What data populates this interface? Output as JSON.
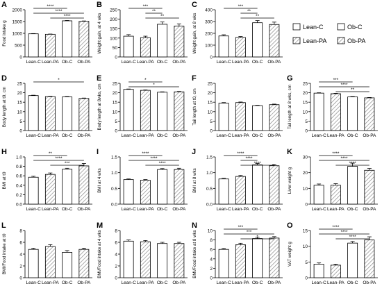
{
  "figure": {
    "categories": [
      "Lean-C",
      "Lean-PA",
      "Ob-C",
      "Ob-PA"
    ],
    "legend_title": "",
    "colors": {
      "bar_fill": "#ffffff",
      "bar_stroke": "#000000",
      "hatch": "#8a8a8a"
    }
  },
  "chart_data": [
    {
      "type": "bar",
      "panel": "A",
      "ylabel": "Food intake g",
      "ylim": [
        0,
        2000
      ],
      "yticks": [
        0,
        500,
        1000,
        1500,
        2000
      ],
      "categories": [
        "Lean-C",
        "Lean-PA",
        "Ob-C",
        "Ob-PA"
      ],
      "values": [
        980,
        960,
        1530,
        1510
      ],
      "errors": [
        10,
        10,
        15,
        15
      ],
      "sig": [
        {
          "from": 0,
          "to": 2,
          "label": "****"
        },
        {
          "from": 0,
          "to": 3,
          "label": "****"
        },
        {
          "from": 1,
          "to": 3,
          "label": "****"
        }
      ]
    },
    {
      "type": "bar",
      "panel": "B",
      "ylabel": "Weight gain, at 4 wks",
      "ylim": [
        0,
        250
      ],
      "yticks": [
        0,
        50,
        100,
        150,
        200,
        250
      ],
      "categories": [
        "Lean-C",
        "Lean-PA",
        "Ob-C",
        "Ob-PA"
      ],
      "values": [
        110,
        102,
        173,
        163
      ],
      "errors": [
        8,
        8,
        12,
        12
      ],
      "sig": [
        {
          "from": 0,
          "to": 2,
          "label": "***"
        },
        {
          "from": 1,
          "to": 2,
          "label": "**"
        },
        {
          "from": 1,
          "to": 3,
          "label": "**"
        }
      ]
    },
    {
      "type": "bar",
      "panel": "C",
      "ylabel": "Weight gain, at 8 wks",
      "ylim": [
        0,
        400
      ],
      "yticks": [
        0,
        100,
        200,
        300,
        400
      ],
      "categories": [
        "Lean-C",
        "Lean-PA",
        "Ob-C",
        "Ob-PA"
      ],
      "values": [
        178,
        165,
        290,
        275
      ],
      "errors": [
        10,
        8,
        18,
        20
      ],
      "sig": [
        {
          "from": 0,
          "to": 2,
          "label": "***"
        },
        {
          "from": 1,
          "to": 2,
          "label": "**"
        },
        {
          "from": 1,
          "to": 3,
          "label": "**"
        }
      ]
    },
    {
      "type": "bar",
      "panel": "D",
      "ylabel": "Body length at t0, cm",
      "ylim": [
        0,
        25
      ],
      "yticks": [
        0,
        5,
        10,
        15,
        20,
        25
      ],
      "categories": [
        "Lean-C",
        "Lean-PA",
        "Ob-C",
        "Ob-PA"
      ],
      "values": [
        18.5,
        18.0,
        17.8,
        17.0
      ],
      "errors": [
        0.2,
        0.2,
        0.2,
        0.2
      ],
      "sig": [
        {
          "from": 0,
          "to": 3,
          "label": "*"
        }
      ]
    },
    {
      "type": "bar",
      "panel": "E",
      "ylabel": "Body length at 8wks, cm",
      "ylim": [
        0,
        25
      ],
      "yticks": [
        0,
        5,
        10,
        15,
        20,
        25
      ],
      "categories": [
        "Lean-C",
        "Lean-PA",
        "Ob-C",
        "Ob-PA"
      ],
      "values": [
        21.8,
        21.3,
        20.3,
        20.5
      ],
      "errors": [
        0.2,
        0.2,
        0.2,
        0.2
      ],
      "sig": [
        {
          "from": 0,
          "to": 2,
          "label": "*"
        },
        {
          "from": 0,
          "to": 3,
          "label": "*"
        }
      ]
    },
    {
      "type": "bar",
      "panel": "F",
      "ylabel": "Tail length at t0, cm",
      "ylim": [
        0,
        25
      ],
      "yticks": [
        0,
        5,
        10,
        15,
        20,
        25
      ],
      "categories": [
        "Lean-C",
        "Lean-PA",
        "Ob-C",
        "Ob-PA"
      ],
      "values": [
        14.5,
        14.8,
        13.2,
        13.7
      ],
      "errors": [
        0.3,
        0.3,
        0.2,
        0.3
      ],
      "sig": []
    },
    {
      "type": "bar",
      "panel": "G",
      "ylabel": "Tail length at 8 wks, cm",
      "ylim": [
        0,
        25
      ],
      "yticks": [
        0,
        5,
        10,
        15,
        20,
        25
      ],
      "categories": [
        "Lean-C",
        "Lean-PA",
        "Ob-C",
        "Ob-PA"
      ],
      "values": [
        19.8,
        19.5,
        17.8,
        17.3
      ],
      "errors": [
        0.2,
        0.2,
        0.2,
        0.2
      ],
      "sig": [
        {
          "from": 0,
          "to": 2,
          "label": "***"
        },
        {
          "from": 0,
          "to": 3,
          "label": "****"
        },
        {
          "from": 1,
          "to": 3,
          "label": "**"
        }
      ]
    },
    {
      "type": "bar",
      "panel": "H",
      "ylabel": "BMI at t0",
      "ylim": [
        0,
        1.0
      ],
      "yticks": [
        0.0,
        0.2,
        0.4,
        0.6,
        0.8,
        1.0
      ],
      "categories": [
        "Lean-C",
        "Lean-PA",
        "Ob-C",
        "Ob-PA"
      ],
      "values": [
        0.57,
        0.63,
        0.74,
        0.81
      ],
      "errors": [
        0.02,
        0.03,
        0.02,
        0.05
      ],
      "sig": [
        {
          "from": 0,
          "to": 2,
          "label": "**"
        },
        {
          "from": 0,
          "to": 3,
          "label": "****"
        },
        {
          "from": 1,
          "to": 3,
          "label": "***"
        }
      ]
    },
    {
      "type": "bar",
      "panel": "I",
      "ylabel": "BMI at 4 wks",
      "ylim": [
        0,
        1.5
      ],
      "yticks": [
        0.0,
        0.5,
        1.0,
        1.5
      ],
      "categories": [
        "Lean-C",
        "Lean-PA",
        "Ob-C",
        "Ob-PA"
      ],
      "values": [
        0.78,
        0.76,
        1.1,
        1.1
      ],
      "errors": [
        0.02,
        0.02,
        0.03,
        0.04
      ],
      "sig": [
        {
          "from": 0,
          "to": 2,
          "label": "****"
        },
        {
          "from": 0,
          "to": 3,
          "label": "****"
        },
        {
          "from": 1,
          "to": 3,
          "label": "****"
        }
      ]
    },
    {
      "type": "bar",
      "panel": "J",
      "ylabel": "BMI at 8 wks",
      "ylim": [
        0,
        1.5
      ],
      "yticks": [
        0.0,
        0.5,
        1.0,
        1.5
      ],
      "categories": [
        "Lean-C",
        "Lean-PA",
        "Ob-C",
        "Ob-PA"
      ],
      "values": [
        0.8,
        0.88,
        1.25,
        1.22
      ],
      "errors": [
        0.02,
        0.03,
        0.04,
        0.04
      ],
      "sig": [
        {
          "from": 0,
          "to": 2,
          "label": "****"
        },
        {
          "from": 1,
          "to": 2,
          "label": "****"
        },
        {
          "from": 1,
          "to": 3,
          "label": "****"
        }
      ]
    },
    {
      "type": "bar",
      "panel": "K",
      "ylabel": "Liver weight g",
      "ylim": [
        0,
        30
      ],
      "yticks": [
        0,
        10,
        20,
        30
      ],
      "categories": [
        "Lean-C",
        "Lean-PA",
        "Ob-C",
        "Ob-PA"
      ],
      "values": [
        12,
        12,
        24,
        21.5
      ],
      "errors": [
        0.8,
        1.0,
        2.0,
        1.2
      ],
      "sig": [
        {
          "from": 0,
          "to": 2,
          "label": "****"
        },
        {
          "from": 0,
          "to": 3,
          "label": "****"
        },
        {
          "from": 1,
          "to": 3,
          "label": "****"
        }
      ]
    },
    {
      "type": "bar",
      "panel": "L",
      "ylabel": "BMI/Food intake at t0",
      "ylim": [
        0,
        8
      ],
      "yticks": [
        0,
        2,
        4,
        6,
        8
      ],
      "categories": [
        "Lean-C",
        "Lean-PA",
        "Ob-C",
        "Ob-PA"
      ],
      "values": [
        4.8,
        5.3,
        4.3,
        4.8
      ],
      "errors": [
        0.2,
        0.3,
        0.3,
        0.2
      ],
      "sig": []
    },
    {
      "type": "bar",
      "panel": "M",
      "ylabel": "BMI/Food intake at 4 wks",
      "ylim": [
        0,
        8
      ],
      "yticks": [
        0,
        2,
        4,
        6,
        8
      ],
      "categories": [
        "Lean-C",
        "Lean-PA",
        "Ob-C",
        "Ob-PA"
      ],
      "values": [
        6.2,
        6.1,
        5.8,
        5.8
      ],
      "errors": [
        0.2,
        0.2,
        0.2,
        0.2
      ],
      "sig": []
    },
    {
      "type": "bar",
      "panel": "N",
      "ylabel": "BMI/Food intake at 8 wks",
      "ylim": [
        0,
        10
      ],
      "yticks": [
        0,
        2,
        4,
        6,
        8,
        10
      ],
      "categories": [
        "Lean-C",
        "Lean-PA",
        "Ob-C",
        "Ob-PA"
      ],
      "values": [
        6.0,
        7.0,
        8.3,
        8.4
      ],
      "errors": [
        0.2,
        0.3,
        0.3,
        0.3
      ],
      "sig": [
        {
          "from": 0,
          "to": 2,
          "label": "***"
        },
        {
          "from": 0,
          "to": 3,
          "label": "***"
        },
        {
          "from": 1,
          "to": 3,
          "label": "*"
        }
      ]
    },
    {
      "type": "bar",
      "panel": "O",
      "ylabel": "VAT weight g",
      "ylim": [
        0,
        15
      ],
      "yticks": [
        0,
        5,
        10,
        15
      ],
      "categories": [
        "Lean-C",
        "Lean-PA",
        "Ob-C",
        "Ob-PA"
      ],
      "values": [
        4.3,
        4.0,
        11.0,
        12.0
      ],
      "errors": [
        0.4,
        0.3,
        0.5,
        1.0
      ],
      "sig": [
        {
          "from": 0,
          "to": 2,
          "label": "****"
        },
        {
          "from": 0,
          "to": 3,
          "label": "****"
        },
        {
          "from": 1,
          "to": 3,
          "label": "****"
        }
      ]
    }
  ]
}
